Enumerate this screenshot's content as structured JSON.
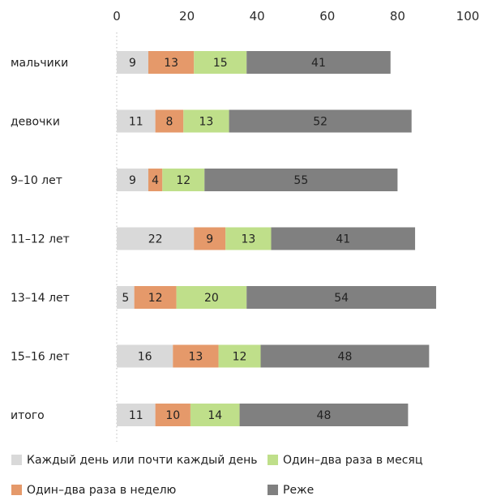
{
  "chart_data": {
    "type": "bar",
    "orientation": "horizontal",
    "stacked": true,
    "categories": [
      "мальчики",
      "девочки",
      "9–10 лет",
      "11–12 лет",
      "13–14 лет",
      "15–16 лет",
      "итого"
    ],
    "series": [
      {
        "name": "Каждый день или почти каждый день",
        "color": "#d9d9d9",
        "values": [
          9,
          11,
          9,
          22,
          5,
          16,
          11
        ]
      },
      {
        "name": "Один–два раза в неделю",
        "color": "#e5996a",
        "values": [
          13,
          8,
          4,
          9,
          12,
          13,
          10
        ]
      },
      {
        "name": "Один–два раза в месяц",
        "color": "#bfdf8a",
        "values": [
          15,
          13,
          12,
          13,
          20,
          12,
          14
        ]
      },
      {
        "name": "Реже",
        "color": "#808080",
        "values": [
          41,
          52,
          55,
          41,
          54,
          48,
          48
        ]
      }
    ],
    "xlim": [
      0,
      100
    ],
    "xticks": [
      0,
      20,
      40,
      60,
      80,
      100
    ],
    "xaxis_position": "top",
    "grid": false,
    "legend_position": "bottom"
  }
}
